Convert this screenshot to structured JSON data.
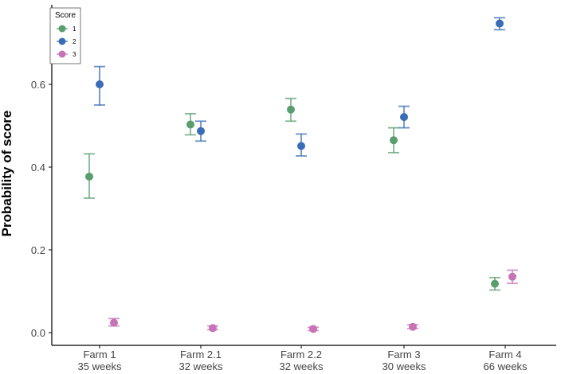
{
  "chart_data": {
    "type": "scatter",
    "ylabel": "Probability of score",
    "xlabel": "",
    "categories": [
      [
        "Farm 1",
        "35 weeks"
      ],
      [
        "Farm 2.1",
        "32 weeks"
      ],
      [
        "Farm 2.2",
        "32 weeks"
      ],
      [
        "Farm 3",
        "30 weeks"
      ],
      [
        "Farm 4",
        "66 weeks"
      ]
    ],
    "ylim": [
      -0.03,
      0.8
    ],
    "yticks": [
      "0.0",
      "0.2",
      "0.4",
      "0.6"
    ],
    "ytick_values": [
      0.0,
      0.2,
      0.4,
      0.6
    ],
    "grid": false,
    "legend": {
      "title": "Score",
      "placement": "top-left"
    },
    "series": [
      {
        "name": "1",
        "color": "#5a9e6f",
        "values": [
          0.377,
          0.503,
          0.539,
          0.465,
          0.118
        ],
        "error_low": [
          0.325,
          0.478,
          0.511,
          0.435,
          0.103
        ],
        "error_high": [
          0.432,
          0.529,
          0.566,
          0.495,
          0.133
        ]
      },
      {
        "name": "2",
        "color": "#3a6db5",
        "values": [
          0.6,
          0.487,
          0.451,
          0.521,
          0.747
        ],
        "error_low": [
          0.55,
          0.463,
          0.427,
          0.495,
          0.732
        ],
        "error_high": [
          0.643,
          0.511,
          0.48,
          0.547,
          0.761
        ]
      },
      {
        "name": "3",
        "color": "#c774b6",
        "values": [
          0.024,
          0.011,
          0.009,
          0.014,
          0.135
        ],
        "error_low": [
          0.016,
          0.007,
          0.005,
          0.01,
          0.119
        ],
        "error_high": [
          0.034,
          0.016,
          0.013,
          0.019,
          0.151
        ]
      }
    ]
  }
}
